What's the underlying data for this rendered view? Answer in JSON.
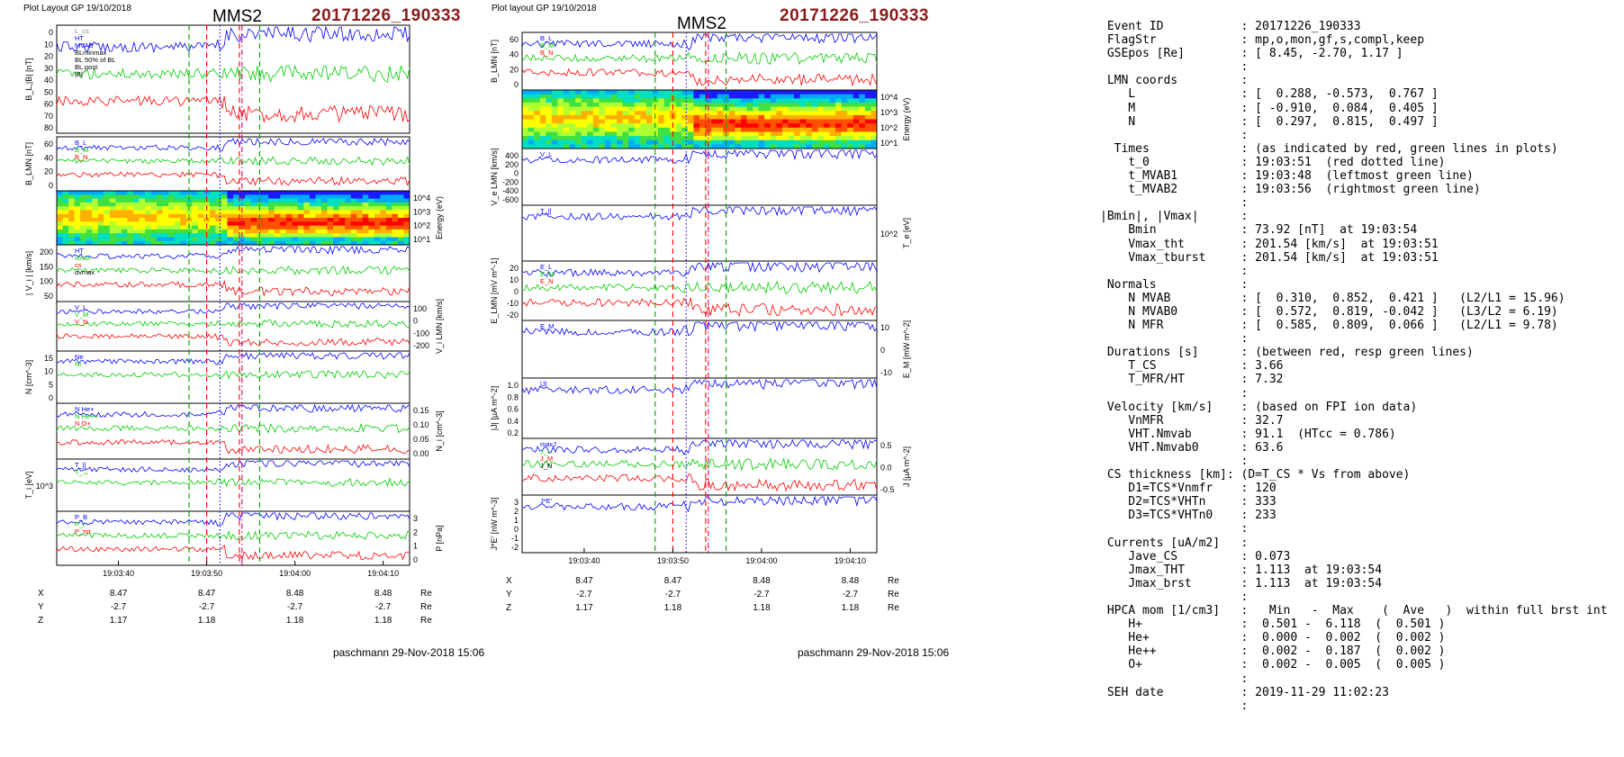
{
  "page": {
    "left_header": "Plot Layout GP 19/10/2018",
    "mid_header": "Plot layout GP 19/10/2018",
    "spacecraft": "MMS2",
    "event_stamp": "20171226_190333",
    "footer": "paschmann 29-Nov-2018 15:06"
  },
  "chart_data": [
    {
      "type": "line",
      "name": "left-figure",
      "time_ticks": [
        "19:03:40",
        "19:03:50",
        "19:04:00",
        "19:04:10"
      ],
      "event_markers": {
        "green_dashed": [
          "19:03:48",
          "19:03:56"
        ],
        "red_dashed": [
          "19:03:50",
          "19:03:53.7"
        ],
        "blue_dotted": [
          "19:03:51.5"
        ],
        "magenta_dashdot": [
          "19:03:54"
        ]
      },
      "panels": [
        {
          "ylabel": "B_L,|B| [nT]",
          "yticks": [
            "0",
            "10",
            "20",
            "30",
            "40",
            "50",
            "60",
            "70",
            "80"
          ],
          "legend": [
            "L_cs",
            "HT",
            "MVAB",
            "BLminmax",
            "BL 50% of BL",
            "BL post",
            "|B|"
          ],
          "series_colors": [
            "#808080",
            "#0000ff",
            "#0000ff"
          ]
        },
        {
          "ylabel": "B_LMN [nT]",
          "yticks": [
            "60",
            "40",
            "20",
            "0"
          ],
          "legend": [
            "B_L",
            "B_M",
            "B_N"
          ],
          "series_colors": [
            "#0000ff",
            "#00cc00",
            "#ff0000"
          ]
        },
        {
          "ylabel_right": "Energy (eV)",
          "yticks_right": [
            "10^4",
            "10^3",
            "10^2",
            "10^1"
          ],
          "kind": "spectrogram"
        },
        {
          "ylabel": "| V_i | [km/s]",
          "yticks": [
            "200",
            "150",
            "100",
            "50"
          ],
          "legend": [
            "HT",
            "vmax",
            "cs",
            "dvmax"
          ]
        },
        {
          "ylabel_right": "V_i LMN [km/s]",
          "yticks_right": [
            "100",
            "0",
            "-100",
            "-200"
          ],
          "legend": [
            "V_L",
            "V_M",
            "V_N"
          ]
        },
        {
          "ylabel": "N [cm^-3]",
          "yticks": [
            "15",
            "10",
            "5",
            "0"
          ],
          "legend": [
            "Ne",
            "Ni"
          ]
        },
        {
          "ylabel_right": "N_i [cm^-3]",
          "yticks_right": [
            "0.15",
            "0.10",
            "0.05",
            "0.00"
          ],
          "legend": [
            "N He+",
            "N He++",
            "N O+"
          ]
        },
        {
          "ylabel": "T_i [eV]",
          "yticks": [
            "10^3"
          ],
          "legend": [
            "T_||",
            "T_⊥"
          ]
        },
        {
          "ylabel_right": "P [nPa]",
          "yticks_right": [
            "3",
            "2",
            "1",
            "0"
          ],
          "legend": [
            "P_B",
            "P_i",
            "P_tot"
          ]
        }
      ],
      "ephemeris": {
        "rows": [
          "X",
          "Y",
          "Z"
        ],
        "unit": "Re",
        "values": [
          [
            "8.47",
            "8.47",
            "8.48",
            "8.48"
          ],
          [
            "-2.7",
            "-2.7",
            "-2.7",
            "-2.7"
          ],
          [
            "1.17",
            "1.18",
            "1.18",
            "1.18"
          ]
        ]
      }
    },
    {
      "type": "line",
      "name": "middle-figure",
      "time_ticks": [
        "19:03:40",
        "19:03:50",
        "19:04:00",
        "19:04:10"
      ],
      "event_markers": {
        "green_dashed": [
          "19:03:48",
          "19:03:56"
        ],
        "red_dashed": [
          "19:03:50",
          "19:03:53.7"
        ],
        "blue_dotted": [
          "19:03:51.5"
        ],
        "magenta_dashdot": [
          "19:03:54"
        ]
      },
      "panels": [
        {
          "ylabel": "B_LMN [nT]",
          "yticks": [
            "60",
            "40",
            "20",
            "0"
          ],
          "legend": [
            "B_L",
            "B_M",
            "B_N"
          ]
        },
        {
          "ylabel_right": "Energy (eV)",
          "yticks_right": [
            "10^4",
            "10^3",
            "10^2",
            "10^1"
          ],
          "kind": "spectrogram"
        },
        {
          "ylabel": "V_e LMN [km/s]",
          "yticks": [
            "400",
            "200",
            "0",
            "-200",
            "-400",
            "-600"
          ],
          "legend": [
            "V_L"
          ]
        },
        {
          "ylabel_right": "T_e [eV]",
          "yticks_right": [
            "10^2"
          ],
          "legend": [
            "T_||"
          ]
        },
        {
          "ylabel": "E_LMN [mV m^-1]",
          "yticks": [
            "20",
            "10",
            "0",
            "-10",
            "-20"
          ],
          "legend": [
            "E_L",
            "E_M",
            "E_N"
          ]
        },
        {
          "ylabel_right": "E_M [mW m^-2]",
          "yticks_right": [
            "10",
            "0",
            "-10"
          ],
          "legend": [
            "E_M"
          ]
        },
        {
          "ylabel": "|J| [µA m^-2]",
          "yticks": [
            "1.0",
            "0.8",
            "0.6",
            "0.4",
            "0.2"
          ],
          "legend": [
            "|J|"
          ]
        },
        {
          "ylabel_right": "J [µA m^-2]",
          "yticks_right": [
            "0.5",
            "0.0",
            "-0.5"
          ],
          "legend": [
            "maxJ",
            "J_L",
            "J_M",
            "J_N"
          ]
        },
        {
          "ylabel": "J*E' [nW m^-3]",
          "yticks": [
            "3",
            "2",
            "1",
            "0",
            "-1",
            "-2"
          ],
          "legend": [
            "J*E'"
          ]
        }
      ],
      "ephemeris": {
        "rows": [
          "X",
          "Y",
          "Z"
        ],
        "unit": "Re",
        "values": [
          [
            "8.47",
            "8.47",
            "8.48",
            "8.48"
          ],
          [
            "-2.7",
            "-2.7",
            "-2.7",
            "-2.7"
          ],
          [
            "1.17",
            "1.18",
            "1.18",
            "1.18"
          ]
        ]
      }
    }
  ],
  "summary": [
    " Event ID           : 20171226_190333",
    " FlagStr            : mp,o,mon,gf,s,compl,keep",
    " GSEpos [Re]        : [ 8.45, -2.70, 1.17 ]",
    "                    :",
    " LMN coords         :",
    "    L               : [  0.288, -0.573,  0.767 ]",
    "    M               : [ -0.910,  0.084,  0.405 ]",
    "    N               : [  0.297,  0.815,  0.497 ]",
    "                    :",
    "  Times             : (as indicated by red, green lines in plots)",
    "    t_0             : 19:03:51  (red dotted line)",
    "    t_MVAB1         : 19:03:48  (leftmost green line)",
    "    t_MVAB2         : 19:03:56  (rightmost green line)",
    "                    :",
    "|Bmin|, |Vmax|      :",
    "    Bmin            : 73.92 [nT]  at 19:03:54",
    "    Vmax_tht        : 201.54 [km/s]  at 19:03:51",
    "    Vmax_tburst     : 201.54 [km/s]  at 19:03:51",
    "                    :",
    " Normals            :",
    "    N MVAB          : [  0.310,  0.852,  0.421 ]   (L2/L1 = 15.96)",
    "    N MVAB0         : [  0.572,  0.819, -0.042 ]   (L3/L2 = 6.19)",
    "    N MFR           : [  0.585,  0.809,  0.066 ]   (L2/L1 = 9.78)",
    "                    :",
    " Durations [s]      : (between red, resp green lines)",
    "    T_CS            : 3.66",
    "    T_MFR/HT        : 7.32",
    "                    :",
    " Velocity [km/s]    : (based on FPI ion data)",
    "    VnMFR           : 32.7",
    "    VHT.Nmvab       : 91.1  (HTcc = 0.786)",
    "    VHT.Nmvab0      : 63.6",
    "                    :",
    " CS thickness [km]: (D=T_CS * Vs from above)",
    "    D1=TCS*Vnmfr    : 120",
    "    D2=TCS*VHTn     : 333",
    "    D3=TCS*VHTn0    : 233",
    "                    :",
    " Currents [uA/m2]   :",
    "    Jave_CS         : 0.073",
    "    Jmax_THT        : 1.113  at 19:03:54",
    "    Jmax_brst       : 1.113  at 19:03:54",
    "                    :",
    " HPCA mom [1/cm3]   :   Min   -  Max    (  Ave   )  within full brst int",
    "    H+              :  0.501 -  6.118  (  0.501 )",
    "    He+             :  0.000 -  0.002  (  0.002 )",
    "    He++            :  0.002 -  0.187  (  0.002 )",
    "    O+              :  0.002 -  0.005  (  0.005 )",
    "                    :",
    " SEH date           : 2019-11-29 11:02:23",
    "                    :"
  ],
  "colors": {
    "event_stamp": "#8b1a1a",
    "green_line": "#00a000",
    "red_line": "#ff0000",
    "blue_line": "#0000ff",
    "magenta_line": "#d0006f"
  }
}
